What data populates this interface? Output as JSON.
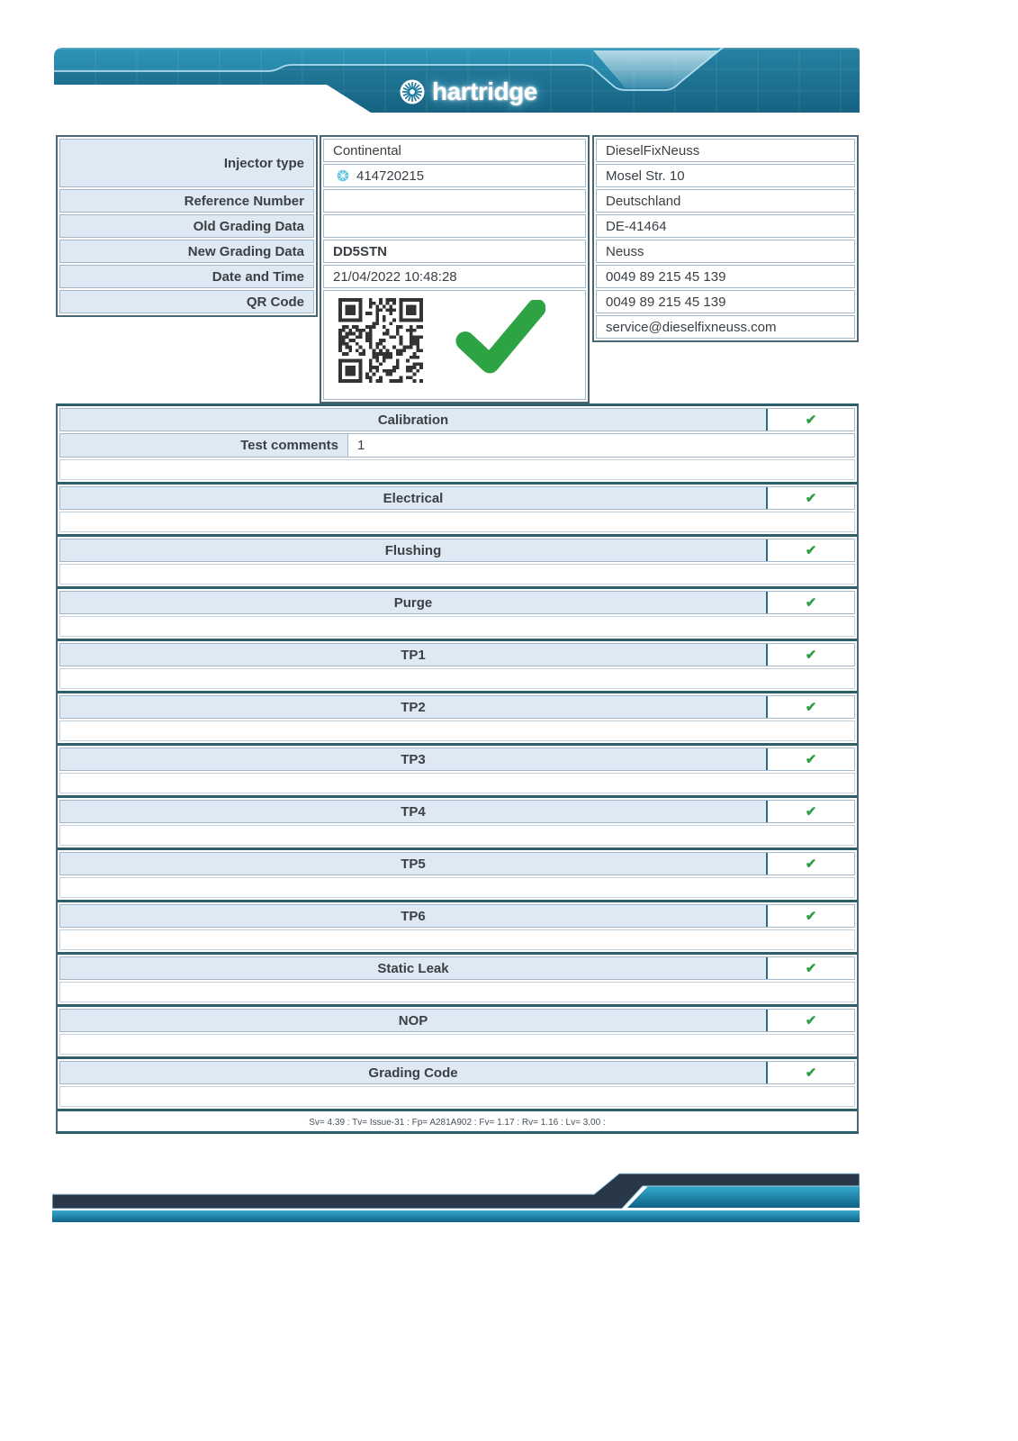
{
  "header": {
    "brand": "hartridge"
  },
  "injector": {
    "labels": {
      "injector_type": "Injector type",
      "reference_number": "Reference Number",
      "old_grading": "Old Grading Data",
      "new_grading": "New Grading Data",
      "date_time": "Date and Time",
      "qr_code": "QR Code"
    },
    "values": {
      "make": "Continental",
      "serial": "414720215",
      "reference_number": "",
      "old_grading": "",
      "new_grading": "DD5STN",
      "date_time": "21/04/2022 10:48:28"
    }
  },
  "workshop": {
    "name": "DieselFixNeuss",
    "street": "Mosel Str. 10",
    "country": "Deutschland",
    "postcode": "DE-41464",
    "city": "Neuss",
    "phone1": "0049 89 215 45 139",
    "phone2": "0049 89 215 45 139",
    "email": "service@dieselfixneuss.com"
  },
  "tests": {
    "check_glyph": "✔",
    "comments_label": "Test comments",
    "comments_value": "1",
    "sections": [
      {
        "name": "Calibration",
        "passed": true
      },
      {
        "name": "Electrical",
        "passed": true
      },
      {
        "name": "Flushing",
        "passed": true
      },
      {
        "name": "Purge",
        "passed": true
      },
      {
        "name": "TP1",
        "passed": true
      },
      {
        "name": "TP2",
        "passed": true
      },
      {
        "name": "TP3",
        "passed": true
      },
      {
        "name": "TP4",
        "passed": true
      },
      {
        "name": "TP5",
        "passed": true
      },
      {
        "name": "TP6",
        "passed": true
      },
      {
        "name": "Static Leak",
        "passed": true
      },
      {
        "name": "NOP",
        "passed": true
      },
      {
        "name": "Grading Code",
        "passed": true
      }
    ]
  },
  "footer": {
    "info_line": "Sv= 4.39  :  Tv= Issue-31  :  Fp= A281A902  :  Fv= 1.17  :  Rv= 1.16  :  Lv= 3.00  :"
  },
  "colors": {
    "accent_teal": "#1d7ea4",
    "pass_green": "#2f9f44",
    "cell_blue": "#dfe9f3",
    "divider_teal": "#2d5f6a",
    "banner_navy": "#233243"
  }
}
